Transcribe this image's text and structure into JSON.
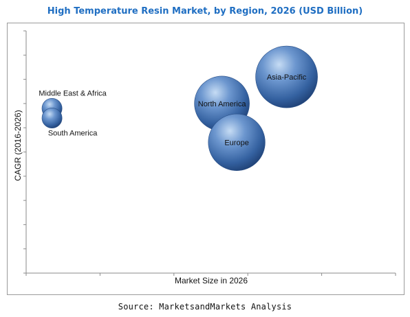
{
  "chart_data": {
    "type": "scatter",
    "title": "High Temperature Resin Market, by Region, 2026 (USD Billion)",
    "xlabel": "Market Size in 2026",
    "ylabel": "CAGR (2016-2026)",
    "xlim": [
      0,
      100
    ],
    "ylim": [
      0,
      100
    ],
    "grid": false,
    "legend": "none",
    "series": [
      {
        "points": [
          {
            "label": "Asia-Pacific",
            "x": 70.5,
            "y": 81,
            "size": 9.5
          },
          {
            "label": "North America",
            "x": 53,
            "y": 70,
            "size": 7.5
          },
          {
            "label": "Europe",
            "x": 57,
            "y": 54,
            "size": 8
          },
          {
            "label": "Middle East & Africa",
            "x": 7,
            "y": 68,
            "size": 1
          },
          {
            "label": "South America",
            "x": 7,
            "y": 64,
            "size": 1
          }
        ]
      }
    ],
    "colors": {
      "bubble_light": "#a9c7ea",
      "bubble_mid": "#4a79b8",
      "bubble_dark": "#1e3f73",
      "title": "#1f6ec2"
    }
  },
  "source": "Source: MarketsandMarkets Analysis"
}
